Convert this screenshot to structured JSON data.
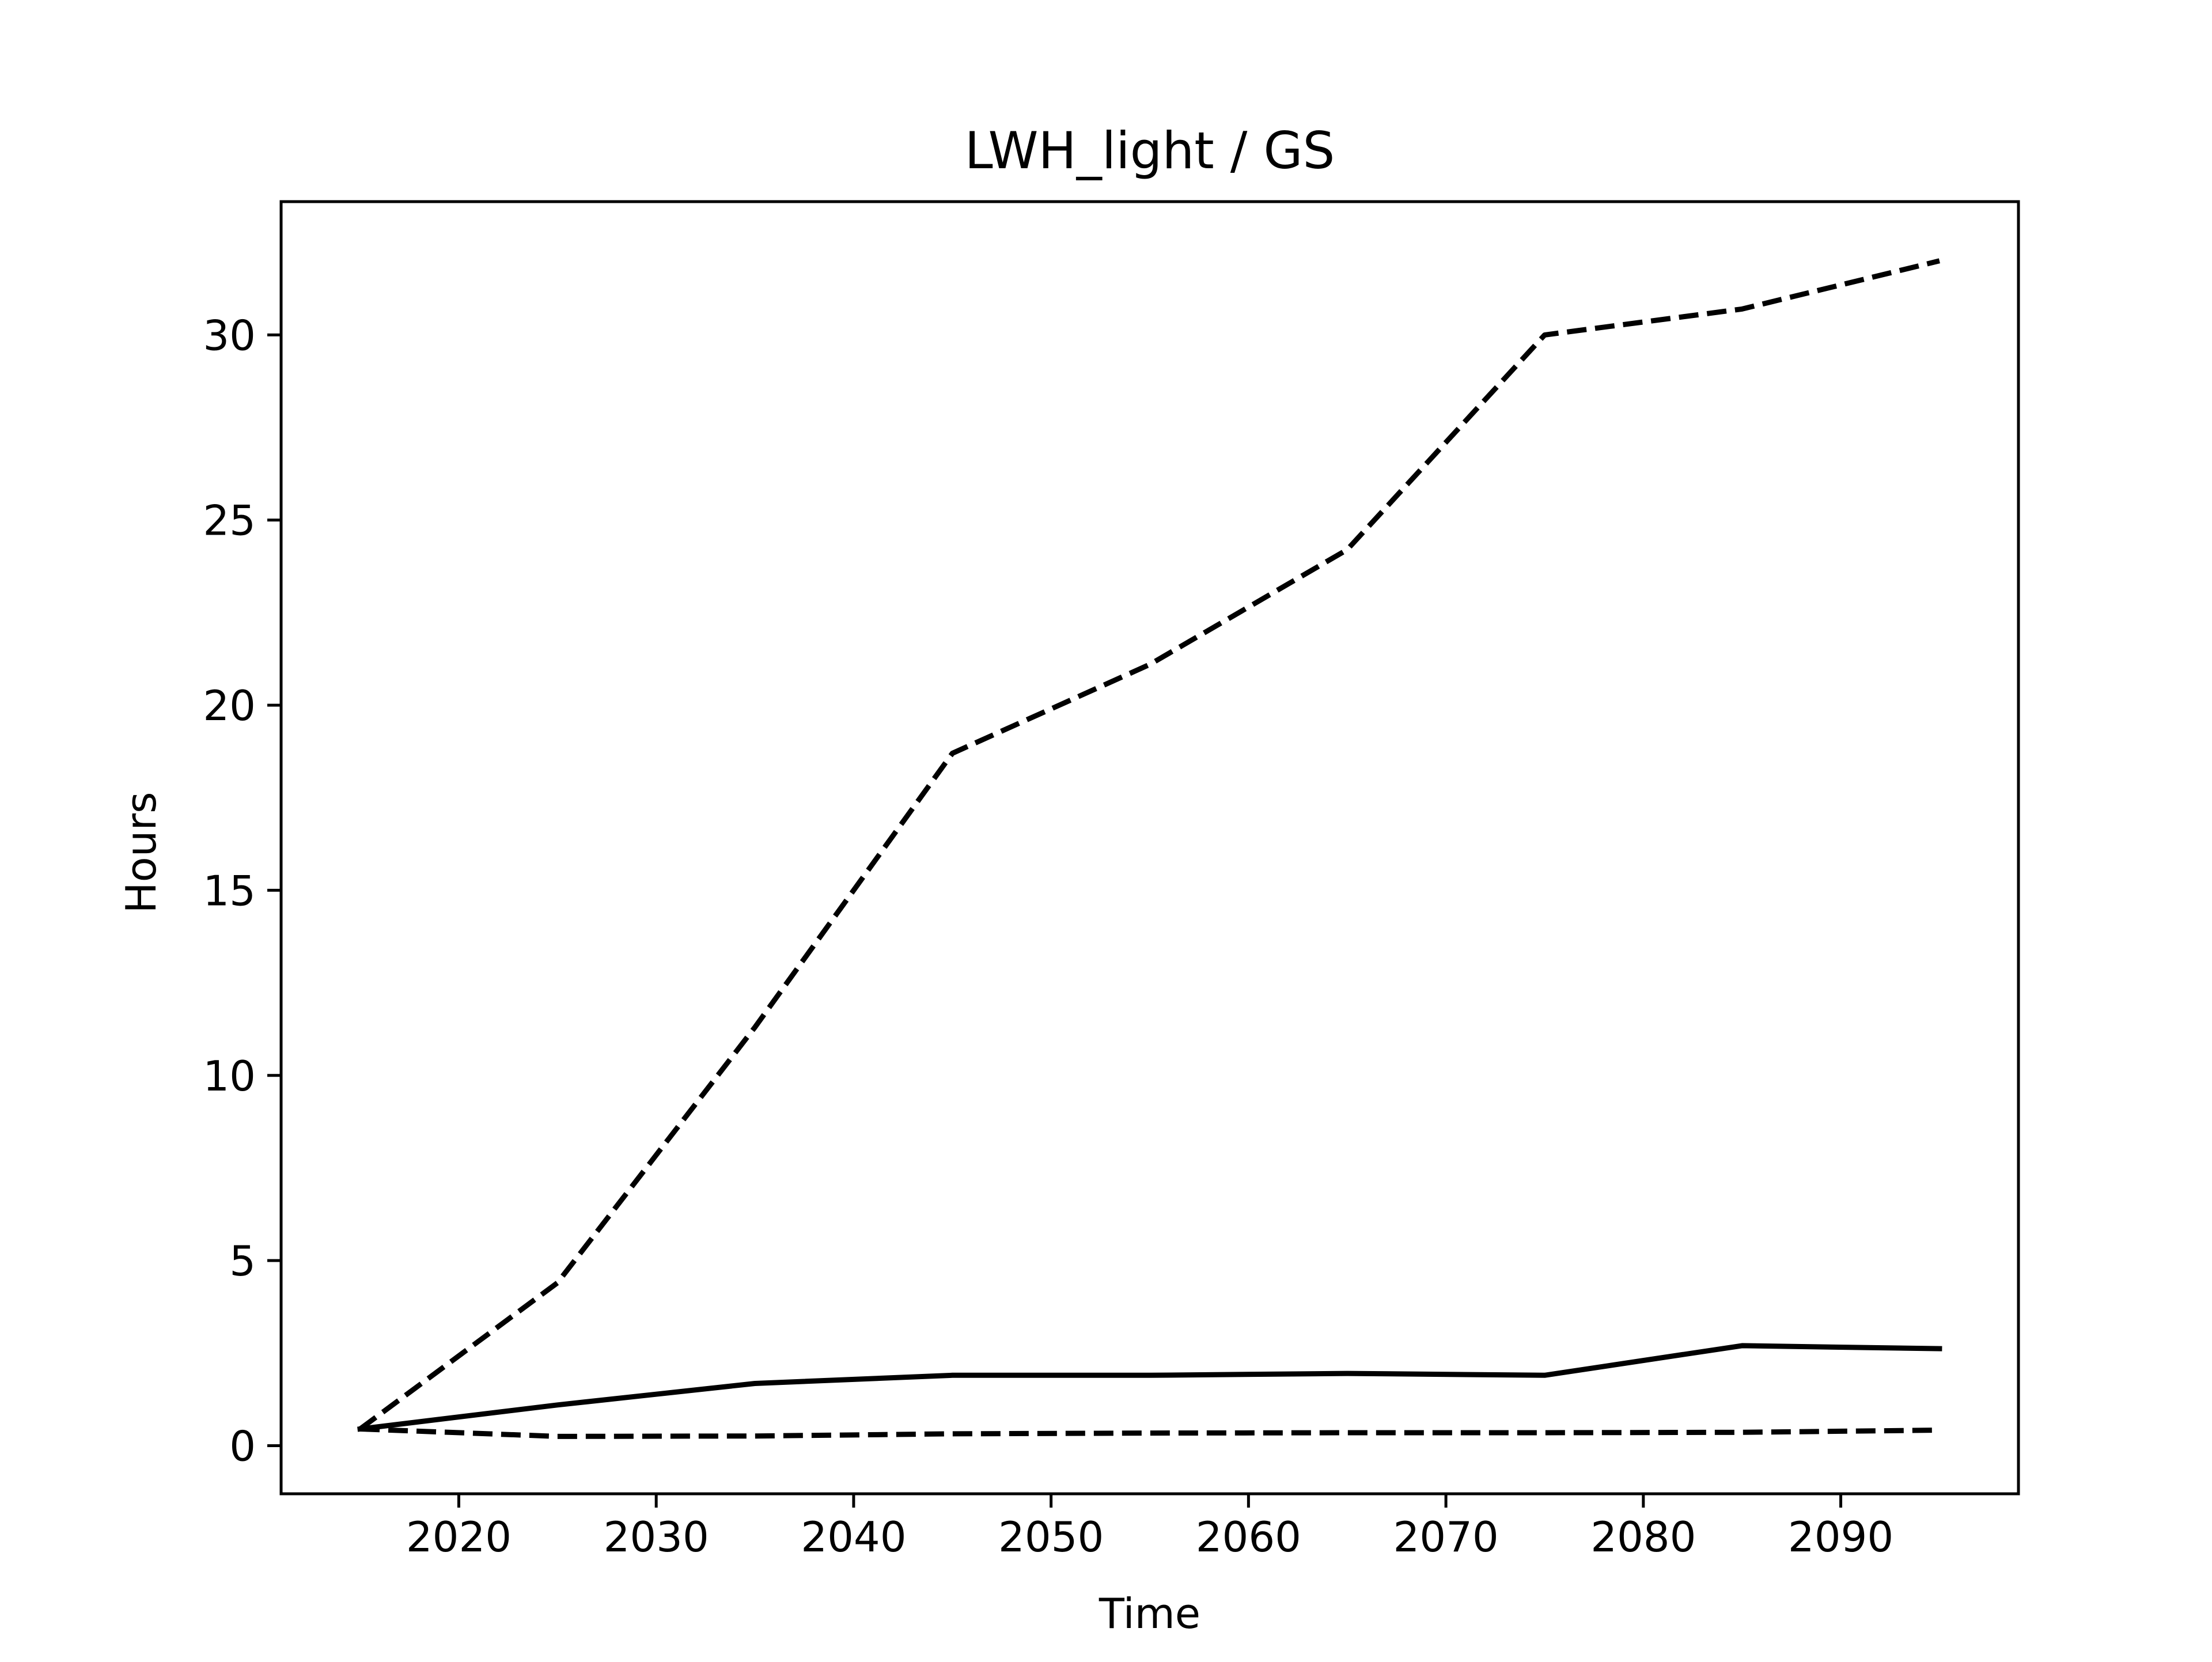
{
  "chart_data": {
    "type": "line",
    "title": "LWH_light / GS",
    "xlabel": "Time",
    "ylabel": "Hours",
    "xlim": [
      2011,
      2099
    ],
    "ylim": [
      -1.3,
      33.6
    ],
    "xticks": [
      2020,
      2030,
      2040,
      2050,
      2060,
      2070,
      2080,
      2090
    ],
    "yticks": [
      0,
      5,
      10,
      15,
      20,
      25,
      30
    ],
    "x": [
      2015,
      2025,
      2035,
      2045,
      2055,
      2065,
      2075,
      2085,
      2095
    ],
    "series": [
      {
        "style": "solid",
        "color": "#000000",
        "values": [
          0.45,
          1.1,
          1.68,
          1.9,
          1.9,
          1.95,
          1.9,
          2.7,
          2.62
        ]
      },
      {
        "style": "dashed",
        "color": "#000000",
        "values": [
          0.45,
          4.4,
          11.3,
          18.7,
          21.1,
          24.2,
          30.0,
          30.7,
          32.0
        ]
      },
      {
        "style": "dashed",
        "color": "#000000",
        "values": [
          0.45,
          0.25,
          0.26,
          0.32,
          0.34,
          0.35,
          0.35,
          0.36,
          0.42
        ]
      }
    ],
    "grid": false,
    "legend": false
  }
}
